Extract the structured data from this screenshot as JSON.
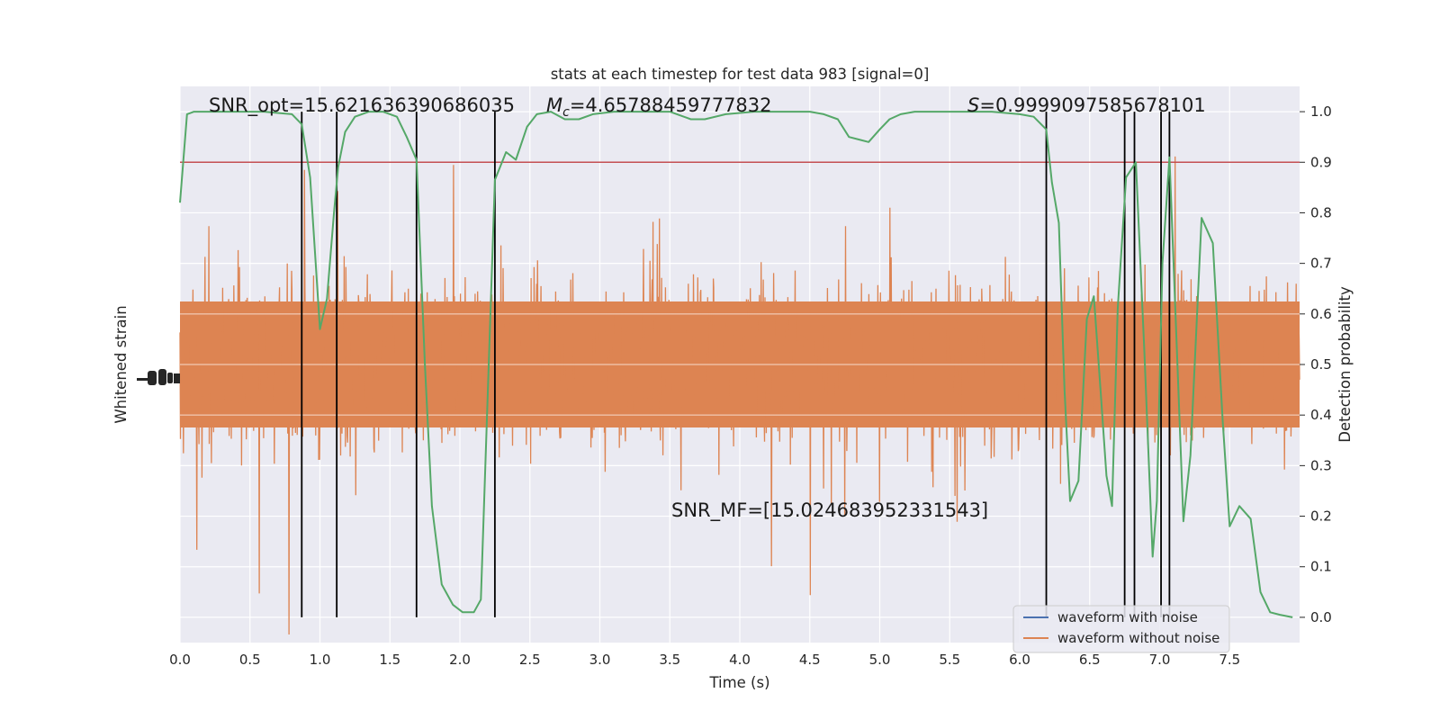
{
  "chart_data": {
    "type": "line",
    "title": "stats at each timestep for test data 983 [signal=0]",
    "xlabel": "Time (s)",
    "ylabel_left": "Whitened strain",
    "ylabel_right": "Detection probability",
    "xlim": [
      0,
      8.0
    ],
    "ylim_right": [
      -0.05,
      1.05
    ],
    "x_ticks": [
      "0.0",
      "0.5",
      "1.0",
      "1.5",
      "2.0",
      "2.5",
      "3.0",
      "3.5",
      "4.0",
      "4.5",
      "5.0",
      "5.5",
      "6.0",
      "6.5",
      "7.0",
      "7.5"
    ],
    "y_ticks_right": [
      "0.0",
      "0.1",
      "0.2",
      "0.3",
      "0.4",
      "0.5",
      "0.6",
      "0.7",
      "0.8",
      "0.9",
      "1.0"
    ],
    "grid": true,
    "legend_position": "lower-right",
    "legend": [
      {
        "label": "waveform with noise",
        "color": "#4c72b0"
      },
      {
        "label": "waveform without noise",
        "color": "#dd8452"
      }
    ],
    "annotations": {
      "snr_opt": "SNR_opt=15.621636390686035",
      "mc_symbol": "M",
      "mc_sub": "c",
      "mc_value": "=4.65788459777832",
      "s_symbol": "S",
      "s_value": "=0.9999097585678101",
      "snr_mf": "SNR_MF=[15.024683952331543]"
    },
    "threshold": 0.9,
    "threshold_color": "#c44e52",
    "detection_color": "#55a868",
    "strain_color": "#dd8452",
    "detection_probability": {
      "t": [
        0.0,
        0.05,
        0.1,
        0.2,
        0.4,
        0.6,
        0.8,
        0.87,
        0.93,
        1.0,
        1.05,
        1.1,
        1.13,
        1.18,
        1.25,
        1.35,
        1.45,
        1.55,
        1.62,
        1.69,
        1.75,
        1.8,
        1.87,
        1.95,
        2.02,
        2.1,
        2.15,
        2.2,
        2.25,
        2.33,
        2.4,
        2.48,
        2.55,
        2.65,
        2.75,
        2.85,
        2.95,
        3.1,
        3.3,
        3.5,
        3.65,
        3.75,
        3.9,
        4.1,
        4.3,
        4.5,
        4.6,
        4.7,
        4.78,
        4.85,
        4.92,
        5.0,
        5.07,
        5.15,
        5.25,
        5.4,
        5.6,
        5.8,
        6.0,
        6.1,
        6.19,
        6.23,
        6.28,
        6.32,
        6.36,
        6.42,
        6.48,
        6.53,
        6.58,
        6.62,
        6.66,
        6.7,
        6.76,
        6.83,
        6.89,
        6.95,
        6.98,
        7.02,
        7.07,
        7.12,
        7.17,
        7.22,
        7.3,
        7.38,
        7.45,
        7.5,
        7.57,
        7.65,
        7.72,
        7.79,
        7.86,
        7.95
      ],
      "p": [
        0.82,
        0.995,
        1.0,
        1.0,
        1.0,
        1.0,
        0.995,
        0.975,
        0.87,
        0.57,
        0.63,
        0.8,
        0.89,
        0.96,
        0.99,
        1.0,
        1.0,
        0.99,
        0.95,
        0.905,
        0.5,
        0.22,
        0.065,
        0.025,
        0.01,
        0.01,
        0.035,
        0.45,
        0.865,
        0.92,
        0.905,
        0.97,
        0.995,
        1.0,
        0.985,
        0.985,
        0.995,
        1.0,
        1.0,
        1.0,
        0.985,
        0.985,
        0.995,
        1.0,
        1.0,
        1.0,
        0.995,
        0.985,
        0.95,
        0.945,
        0.94,
        0.965,
        0.985,
        0.995,
        1.0,
        1.0,
        1.0,
        1.0,
        0.995,
        0.99,
        0.965,
        0.86,
        0.78,
        0.45,
        0.23,
        0.27,
        0.59,
        0.635,
        0.44,
        0.28,
        0.22,
        0.61,
        0.87,
        0.9,
        0.53,
        0.12,
        0.23,
        0.7,
        0.91,
        0.55,
        0.19,
        0.32,
        0.79,
        0.74,
        0.39,
        0.18,
        0.22,
        0.195,
        0.05,
        0.01,
        0.005,
        0.0
      ]
    },
    "vertical_markers": [
      0.87,
      1.12,
      1.69,
      2.25,
      6.19,
      6.75,
      6.82,
      7.01,
      7.07
    ]
  }
}
